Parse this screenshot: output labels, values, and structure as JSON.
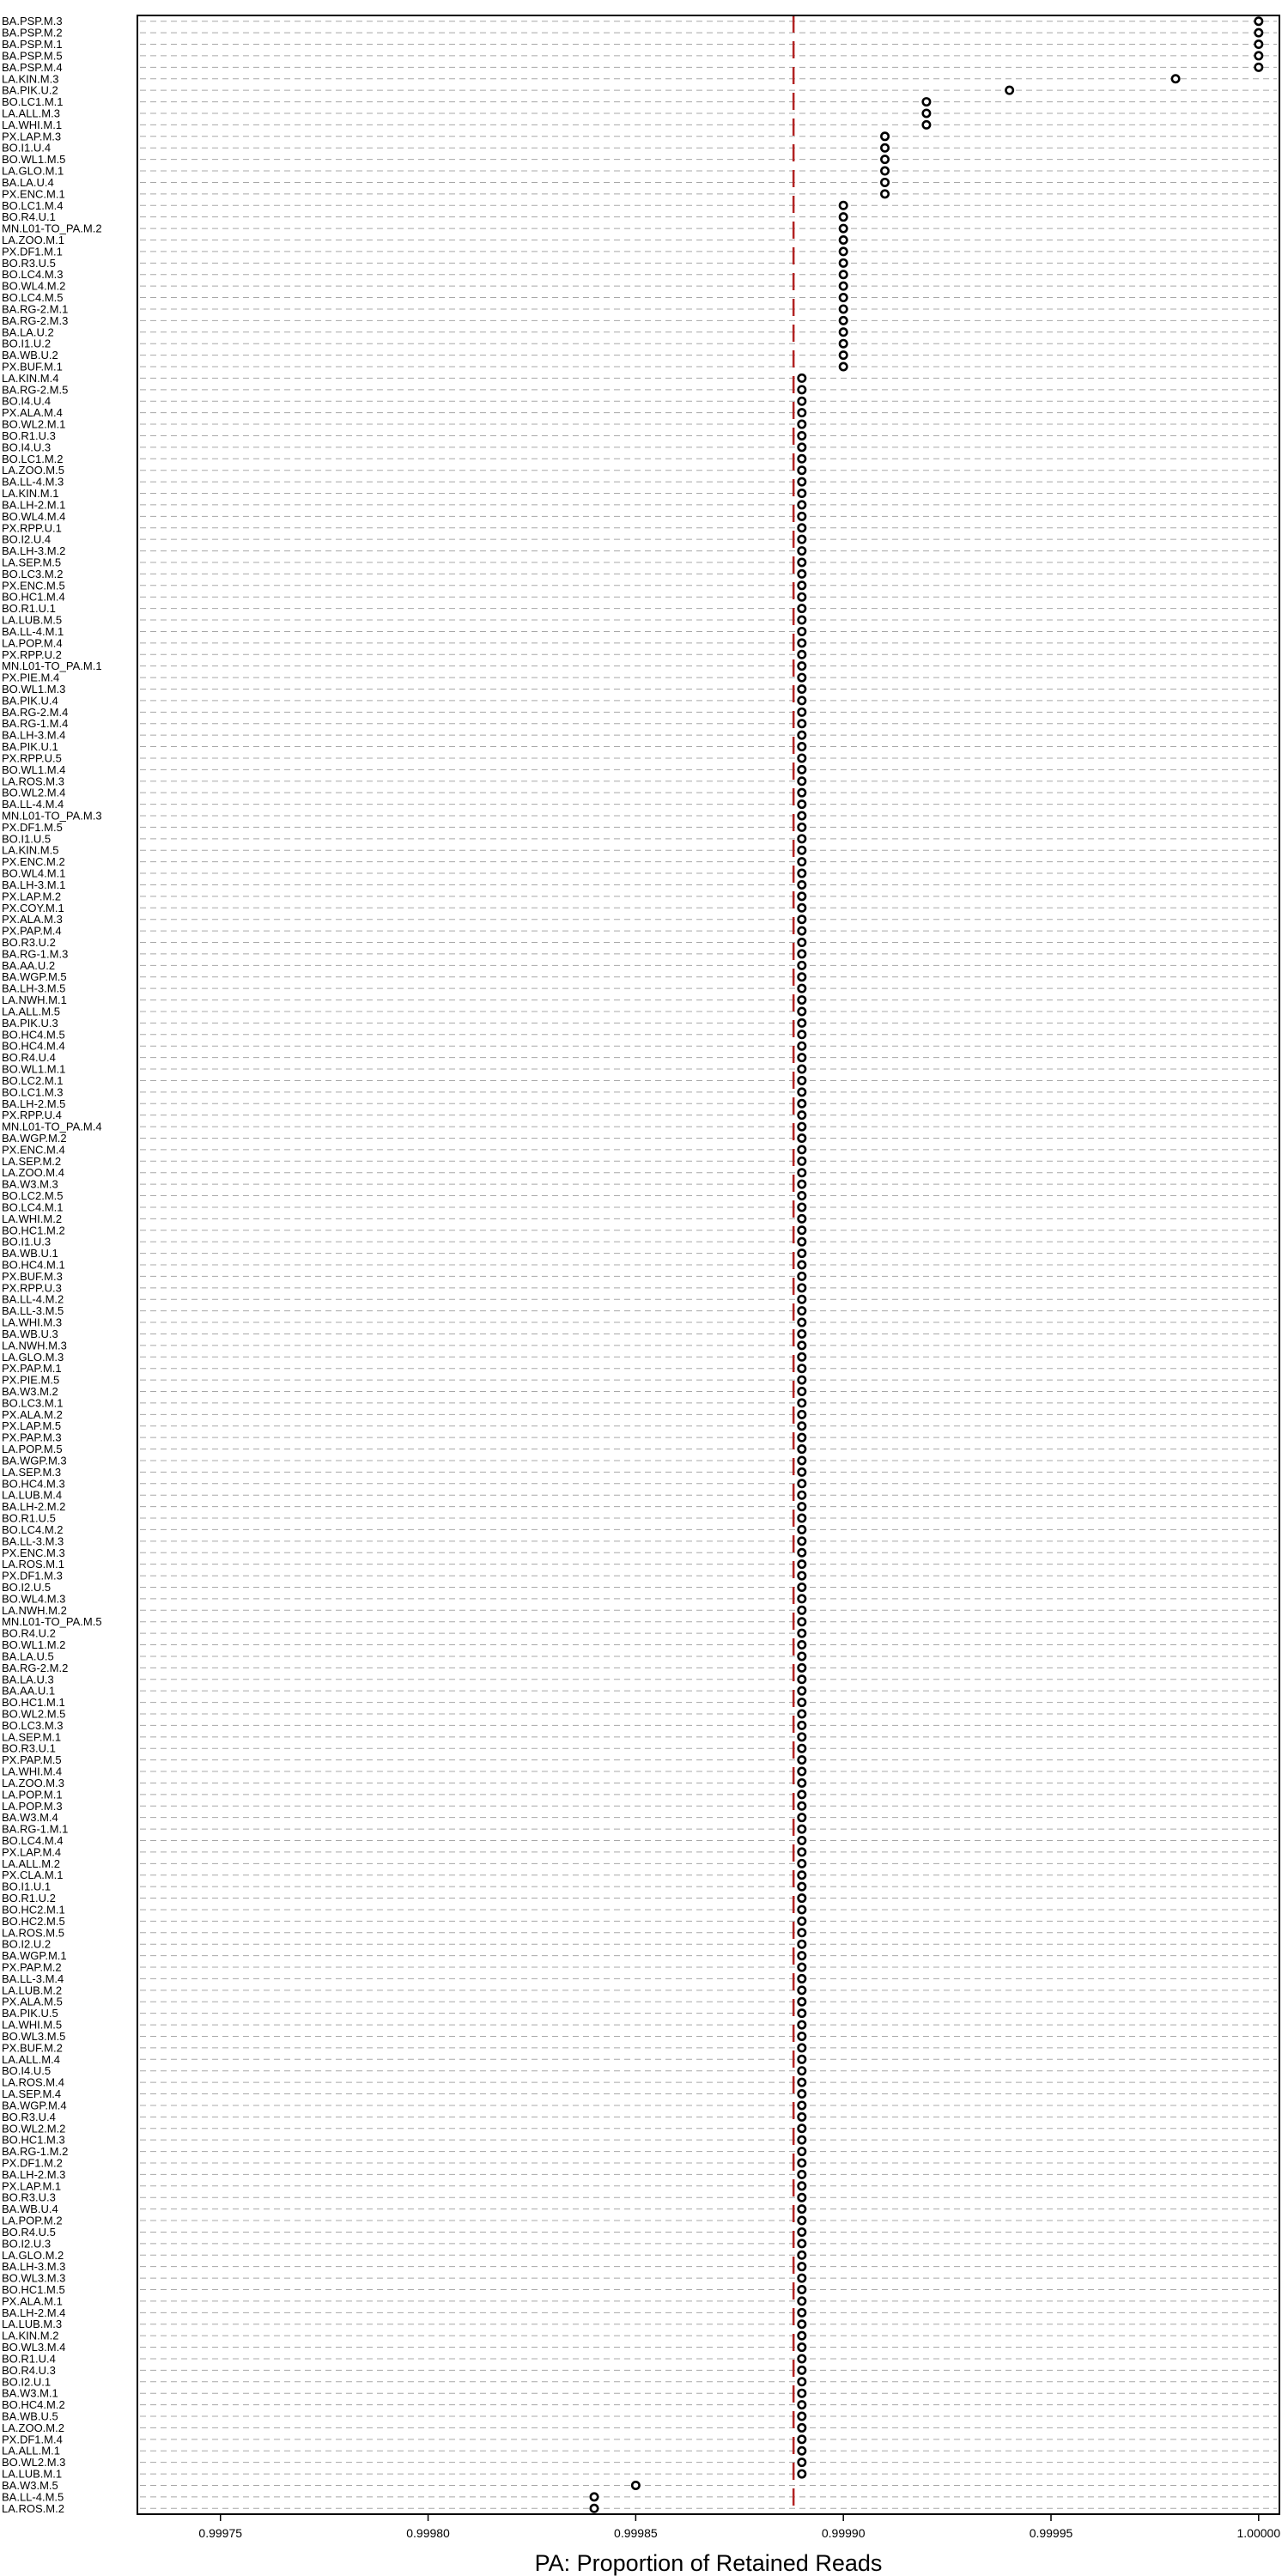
{
  "chart_data": {
    "type": "scatter",
    "title": "",
    "xlabel": "PA: Proportion of Retained Reads",
    "ylabel": "",
    "xlim": [
      0.99973,
      1.000005
    ],
    "xticks": [
      "0.99975",
      "0.99980",
      "0.99985",
      "0.99990",
      "0.99995",
      "1.00000"
    ],
    "reference_line": {
      "x": 0.999888,
      "color": "#b22222"
    },
    "grid": true,
    "legend": "none",
    "colors": {
      "points": "#000000",
      "grid": "#a8a8a8",
      "reference": "#b22222"
    },
    "points": [
      {
        "label": "BA.PSP.M.3",
        "x": 1.0
      },
      {
        "label": "BA.PSP.M.2",
        "x": 1.0
      },
      {
        "label": "BA.PSP.M.1",
        "x": 1.0
      },
      {
        "label": "BA.PSP.M.5",
        "x": 1.0
      },
      {
        "label": "BA.PSP.M.4",
        "x": 1.0
      },
      {
        "label": "LA.KIN.M.3",
        "x": 0.99998
      },
      {
        "label": "BA.PIK.U.2",
        "x": 0.99994
      },
      {
        "label": "BO.LC1.M.1",
        "x": 0.99992
      },
      {
        "label": "LA.ALL.M.3",
        "x": 0.99992
      },
      {
        "label": "LA.WHI.M.1",
        "x": 0.99992
      },
      {
        "label": "PX.LAP.M.3",
        "x": 0.99991
      },
      {
        "label": "BO.I1.U.4",
        "x": 0.99991
      },
      {
        "label": "BO.WL1.M.5",
        "x": 0.99991
      },
      {
        "label": "LA.GLO.M.1",
        "x": 0.99991
      },
      {
        "label": "BA.LA.U.4",
        "x": 0.99991
      },
      {
        "label": "PX.ENC.M.1",
        "x": 0.99991
      },
      {
        "label": "BO.LC1.M.4",
        "x": 0.9999
      },
      {
        "label": "BO.R4.U.1",
        "x": 0.9999
      },
      {
        "label": "MN.L01-TO_PA.M.2",
        "x": 0.9999
      },
      {
        "label": "LA.ZOO.M.1",
        "x": 0.9999
      },
      {
        "label": "PX.DF1.M.1",
        "x": 0.9999
      },
      {
        "label": "BO.R3.U.5",
        "x": 0.9999
      },
      {
        "label": "BO.LC4.M.3",
        "x": 0.9999
      },
      {
        "label": "BO.WL4.M.2",
        "x": 0.9999
      },
      {
        "label": "BO.LC4.M.5",
        "x": 0.9999
      },
      {
        "label": "BA.RG-2.M.1",
        "x": 0.9999
      },
      {
        "label": "BA.RG-2.M.3",
        "x": 0.9999
      },
      {
        "label": "BA.LA.U.2",
        "x": 0.9999
      },
      {
        "label": "BO.I1.U.2",
        "x": 0.9999
      },
      {
        "label": "BA.WB.U.2",
        "x": 0.9999
      },
      {
        "label": "PX.BUF.M.1",
        "x": 0.9999
      },
      {
        "label": "LA.KIN.M.4",
        "x": 0.99989
      },
      {
        "label": "BA.RG-2.M.5",
        "x": 0.99989
      },
      {
        "label": "BO.I4.U.4",
        "x": 0.99989
      },
      {
        "label": "PX.ALA.M.4",
        "x": 0.99989
      },
      {
        "label": "BO.WL2.M.1",
        "x": 0.99989
      },
      {
        "label": "BO.R1.U.3",
        "x": 0.99989
      },
      {
        "label": "BO.I4.U.3",
        "x": 0.99989
      },
      {
        "label": "BO.LC1.M.2",
        "x": 0.99989
      },
      {
        "label": "LA.ZOO.M.5",
        "x": 0.99989
      },
      {
        "label": "BA.LL-4.M.3",
        "x": 0.99989
      },
      {
        "label": "LA.KIN.M.1",
        "x": 0.99989
      },
      {
        "label": "BA.LH-2.M.1",
        "x": 0.99989
      },
      {
        "label": "BO.WL4.M.4",
        "x": 0.99989
      },
      {
        "label": "PX.RPP.U.1",
        "x": 0.99989
      },
      {
        "label": "BO.I2.U.4",
        "x": 0.99989
      },
      {
        "label": "BA.LH-3.M.2",
        "x": 0.99989
      },
      {
        "label": "LA.SEP.M.5",
        "x": 0.99989
      },
      {
        "label": "BO.LC3.M.2",
        "x": 0.99989
      },
      {
        "label": "PX.ENC.M.5",
        "x": 0.99989
      },
      {
        "label": "BO.HC1.M.4",
        "x": 0.99989
      },
      {
        "label": "BO.R1.U.1",
        "x": 0.99989
      },
      {
        "label": "LA.LUB.M.5",
        "x": 0.99989
      },
      {
        "label": "BA.LL-4.M.1",
        "x": 0.99989
      },
      {
        "label": "LA.POP.M.4",
        "x": 0.99989
      },
      {
        "label": "PX.RPP.U.2",
        "x": 0.99989
      },
      {
        "label": "MN.L01-TO_PA.M.1",
        "x": 0.99989
      },
      {
        "label": "PX.PIE.M.4",
        "x": 0.99989
      },
      {
        "label": "BO.WL1.M.3",
        "x": 0.99989
      },
      {
        "label": "BA.PIK.U.4",
        "x": 0.99989
      },
      {
        "label": "BA.RG-2.M.4",
        "x": 0.99989
      },
      {
        "label": "BA.RG-1.M.4",
        "x": 0.99989
      },
      {
        "label": "BA.LH-3.M.4",
        "x": 0.99989
      },
      {
        "label": "BA.PIK.U.1",
        "x": 0.99989
      },
      {
        "label": "PX.RPP.U.5",
        "x": 0.99989
      },
      {
        "label": "BO.WL1.M.4",
        "x": 0.99989
      },
      {
        "label": "LA.ROS.M.3",
        "x": 0.99989
      },
      {
        "label": "BO.WL2.M.4",
        "x": 0.99989
      },
      {
        "label": "BA.LL-4.M.4",
        "x": 0.99989
      },
      {
        "label": "MN.L01-TO_PA.M.3",
        "x": 0.99989
      },
      {
        "label": "PX.DF1.M.5",
        "x": 0.99989
      },
      {
        "label": "BO.I1.U.5",
        "x": 0.99989
      },
      {
        "label": "LA.KIN.M.5",
        "x": 0.99989
      },
      {
        "label": "PX.ENC.M.2",
        "x": 0.99989
      },
      {
        "label": "BO.WL4.M.1",
        "x": 0.99989
      },
      {
        "label": "BA.LH-3.M.1",
        "x": 0.99989
      },
      {
        "label": "PX.LAP.M.2",
        "x": 0.99989
      },
      {
        "label": "PX.COY.M.1",
        "x": 0.99989
      },
      {
        "label": "PX.ALA.M.3",
        "x": 0.99989
      },
      {
        "label": "PX.PAP.M.4",
        "x": 0.99989
      },
      {
        "label": "BO.R3.U.2",
        "x": 0.99989
      },
      {
        "label": "BA.RG-1.M.3",
        "x": 0.99989
      },
      {
        "label": "BA.AA.U.2",
        "x": 0.99989
      },
      {
        "label": "BA.WGP.M.5",
        "x": 0.99989
      },
      {
        "label": "BA.LH-3.M.5",
        "x": 0.99989
      },
      {
        "label": "LA.NWH.M.1",
        "x": 0.99989
      },
      {
        "label": "LA.ALL.M.5",
        "x": 0.99989
      },
      {
        "label": "BA.PIK.U.3",
        "x": 0.99989
      },
      {
        "label": "BO.HC4.M.5",
        "x": 0.99989
      },
      {
        "label": "BO.HC4.M.4",
        "x": 0.99989
      },
      {
        "label": "BO.R4.U.4",
        "x": 0.99989
      },
      {
        "label": "BO.WL1.M.1",
        "x": 0.99989
      },
      {
        "label": "BO.LC2.M.1",
        "x": 0.99989
      },
      {
        "label": "BO.LC1.M.3",
        "x": 0.99989
      },
      {
        "label": "BA.LH-2.M.5",
        "x": 0.99989
      },
      {
        "label": "PX.RPP.U.4",
        "x": 0.99989
      },
      {
        "label": "MN.L01-TO_PA.M.4",
        "x": 0.99989
      },
      {
        "label": "BA.WGP.M.2",
        "x": 0.99989
      },
      {
        "label": "PX.ENC.M.4",
        "x": 0.99989
      },
      {
        "label": "LA.SEP.M.2",
        "x": 0.99989
      },
      {
        "label": "LA.ZOO.M.4",
        "x": 0.99989
      },
      {
        "label": "BA.W3.M.3",
        "x": 0.99989
      },
      {
        "label": "BO.LC2.M.5",
        "x": 0.99989
      },
      {
        "label": "BO.LC4.M.1",
        "x": 0.99989
      },
      {
        "label": "LA.WHI.M.2",
        "x": 0.99989
      },
      {
        "label": "BO.HC1.M.2",
        "x": 0.99989
      },
      {
        "label": "BO.I1.U.3",
        "x": 0.99989
      },
      {
        "label": "BA.WB.U.1",
        "x": 0.99989
      },
      {
        "label": "BO.HC4.M.1",
        "x": 0.99989
      },
      {
        "label": "PX.BUF.M.3",
        "x": 0.99989
      },
      {
        "label": "PX.RPP.U.3",
        "x": 0.99989
      },
      {
        "label": "BA.LL-4.M.2",
        "x": 0.99989
      },
      {
        "label": "BA.LL-3.M.5",
        "x": 0.99989
      },
      {
        "label": "LA.WHI.M.3",
        "x": 0.99989
      },
      {
        "label": "BA.WB.U.3",
        "x": 0.99989
      },
      {
        "label": "LA.NWH.M.3",
        "x": 0.99989
      },
      {
        "label": "LA.GLO.M.3",
        "x": 0.99989
      },
      {
        "label": "PX.PAP.M.1",
        "x": 0.99989
      },
      {
        "label": "PX.PIE.M.5",
        "x": 0.99989
      },
      {
        "label": "BA.W3.M.2",
        "x": 0.99989
      },
      {
        "label": "BO.LC3.M.1",
        "x": 0.99989
      },
      {
        "label": "PX.ALA.M.2",
        "x": 0.99989
      },
      {
        "label": "PX.LAP.M.5",
        "x": 0.99989
      },
      {
        "label": "PX.PAP.M.3",
        "x": 0.99989
      },
      {
        "label": "LA.POP.M.5",
        "x": 0.99989
      },
      {
        "label": "BA.WGP.M.3",
        "x": 0.99989
      },
      {
        "label": "LA.SEP.M.3",
        "x": 0.99989
      },
      {
        "label": "BO.HC4.M.3",
        "x": 0.99989
      },
      {
        "label": "LA.LUB.M.4",
        "x": 0.99989
      },
      {
        "label": "BA.LH-2.M.2",
        "x": 0.99989
      },
      {
        "label": "BO.R1.U.5",
        "x": 0.99989
      },
      {
        "label": "BO.LC4.M.2",
        "x": 0.99989
      },
      {
        "label": "BA.LL-3.M.3",
        "x": 0.99989
      },
      {
        "label": "PX.ENC.M.3",
        "x": 0.99989
      },
      {
        "label": "LA.ROS.M.1",
        "x": 0.99989
      },
      {
        "label": "PX.DF1.M.3",
        "x": 0.99989
      },
      {
        "label": "BO.I2.U.5",
        "x": 0.99989
      },
      {
        "label": "BO.WL4.M.3",
        "x": 0.99989
      },
      {
        "label": "LA.NWH.M.2",
        "x": 0.99989
      },
      {
        "label": "MN.L01-TO_PA.M.5",
        "x": 0.99989
      },
      {
        "label": "BO.R4.U.2",
        "x": 0.99989
      },
      {
        "label": "BO.WL1.M.2",
        "x": 0.99989
      },
      {
        "label": "BA.LA.U.5",
        "x": 0.99989
      },
      {
        "label": "BA.RG-2.M.2",
        "x": 0.99989
      },
      {
        "label": "BA.LA.U.3",
        "x": 0.99989
      },
      {
        "label": "BA.AA.U.1",
        "x": 0.99989
      },
      {
        "label": "BO.HC1.M.1",
        "x": 0.99989
      },
      {
        "label": "BO.WL2.M.5",
        "x": 0.99989
      },
      {
        "label": "BO.LC3.M.3",
        "x": 0.99989
      },
      {
        "label": "LA.SEP.M.1",
        "x": 0.99989
      },
      {
        "label": "BO.R3.U.1",
        "x": 0.99989
      },
      {
        "label": "PX.PAP.M.5",
        "x": 0.99989
      },
      {
        "label": "LA.WHI.M.4",
        "x": 0.99989
      },
      {
        "label": "LA.ZOO.M.3",
        "x": 0.99989
      },
      {
        "label": "LA.POP.M.1",
        "x": 0.99989
      },
      {
        "label": "LA.POP.M.3",
        "x": 0.99989
      },
      {
        "label": "BA.W3.M.4",
        "x": 0.99989
      },
      {
        "label": "BA.RG-1.M.1",
        "x": 0.99989
      },
      {
        "label": "BO.LC4.M.4",
        "x": 0.99989
      },
      {
        "label": "PX.LAP.M.4",
        "x": 0.99989
      },
      {
        "label": "LA.ALL.M.2",
        "x": 0.99989
      },
      {
        "label": "PX.CLA.M.1",
        "x": 0.99989
      },
      {
        "label": "BO.I1.U.1",
        "x": 0.99989
      },
      {
        "label": "BO.R1.U.2",
        "x": 0.99989
      },
      {
        "label": "BO.HC2.M.1",
        "x": 0.99989
      },
      {
        "label": "BO.HC2.M.5",
        "x": 0.99989
      },
      {
        "label": "LA.ROS.M.5",
        "x": 0.99989
      },
      {
        "label": "BO.I2.U.2",
        "x": 0.99989
      },
      {
        "label": "BA.WGP.M.1",
        "x": 0.99989
      },
      {
        "label": "PX.PAP.M.2",
        "x": 0.99989
      },
      {
        "label": "BA.LL-3.M.4",
        "x": 0.99989
      },
      {
        "label": "LA.LUB.M.2",
        "x": 0.99989
      },
      {
        "label": "PX.ALA.M.5",
        "x": 0.99989
      },
      {
        "label": "BA.PIK.U.5",
        "x": 0.99989
      },
      {
        "label": "LA.WHI.M.5",
        "x": 0.99989
      },
      {
        "label": "BO.WL3.M.5",
        "x": 0.99989
      },
      {
        "label": "PX.BUF.M.2",
        "x": 0.99989
      },
      {
        "label": "LA.ALL.M.4",
        "x": 0.99989
      },
      {
        "label": "BO.I4.U.5",
        "x": 0.99989
      },
      {
        "label": "LA.ROS.M.4",
        "x": 0.99989
      },
      {
        "label": "LA.SEP.M.4",
        "x": 0.99989
      },
      {
        "label": "BA.WGP.M.4",
        "x": 0.99989
      },
      {
        "label": "BO.R3.U.4",
        "x": 0.99989
      },
      {
        "label": "BO.WL2.M.2",
        "x": 0.99989
      },
      {
        "label": "BO.HC1.M.3",
        "x": 0.99989
      },
      {
        "label": "BA.RG-1.M.2",
        "x": 0.99989
      },
      {
        "label": "PX.DF1.M.2",
        "x": 0.99989
      },
      {
        "label": "BA.LH-2.M.3",
        "x": 0.99989
      },
      {
        "label": "PX.LAP.M.1",
        "x": 0.99989
      },
      {
        "label": "BO.R3.U.3",
        "x": 0.99989
      },
      {
        "label": "BA.WB.U.4",
        "x": 0.99989
      },
      {
        "label": "LA.POP.M.2",
        "x": 0.99989
      },
      {
        "label": "BO.R4.U.5",
        "x": 0.99989
      },
      {
        "label": "BO.I2.U.3",
        "x": 0.99989
      },
      {
        "label": "LA.GLO.M.2",
        "x": 0.99989
      },
      {
        "label": "BA.LH-3.M.3",
        "x": 0.99989
      },
      {
        "label": "BO.WL3.M.3",
        "x": 0.99989
      },
      {
        "label": "BO.HC1.M.5",
        "x": 0.99989
      },
      {
        "label": "PX.ALA.M.1",
        "x": 0.99989
      },
      {
        "label": "BA.LH-2.M.4",
        "x": 0.99989
      },
      {
        "label": "LA.LUB.M.3",
        "x": 0.99989
      },
      {
        "label": "LA.KIN.M.2",
        "x": 0.99989
      },
      {
        "label": "BO.WL3.M.4",
        "x": 0.99989
      },
      {
        "label": "BO.R1.U.4",
        "x": 0.99989
      },
      {
        "label": "BO.R4.U.3",
        "x": 0.99989
      },
      {
        "label": "BO.I2.U.1",
        "x": 0.99989
      },
      {
        "label": "BA.W3.M.1",
        "x": 0.99989
      },
      {
        "label": "BO.HC4.M.2",
        "x": 0.99989
      },
      {
        "label": "BA.WB.U.5",
        "x": 0.99989
      },
      {
        "label": "LA.ZOO.M.2",
        "x": 0.99989
      },
      {
        "label": "PX.DF1.M.4",
        "x": 0.99989
      },
      {
        "label": "LA.ALL.M.1",
        "x": 0.99989
      },
      {
        "label": "BO.WL2.M.3",
        "x": 0.99989
      },
      {
        "label": "LA.LUB.M.1",
        "x": 0.99989
      },
      {
        "label": "BA.W3.M.5",
        "x": 0.99985
      },
      {
        "label": "BA.LL-4.M.5",
        "x": 0.99984
      },
      {
        "label": "LA.ROS.M.2",
        "x": 0.99984
      }
    ]
  }
}
